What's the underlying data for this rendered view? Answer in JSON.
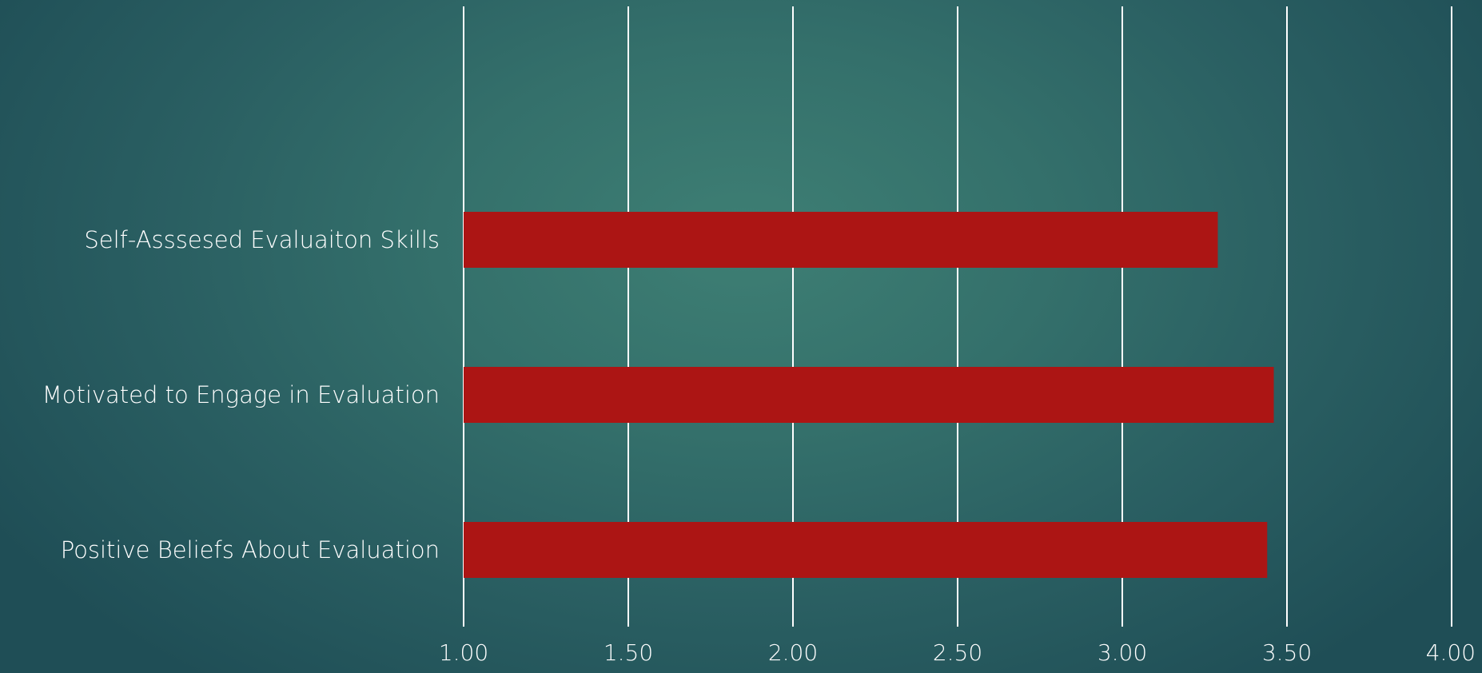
{
  "chart_data": {
    "type": "bar",
    "orientation": "horizontal",
    "categories": [
      "Self-Asssesed Evaluaiton Skills",
      "Motivated to Engage in Evaluation",
      "Positive Beliefs About Evaluation"
    ],
    "values": [
      3.29,
      3.46,
      3.44
    ],
    "xlim": [
      1.0,
      4.0
    ],
    "ticks": [
      "1.00",
      "1.50",
      "2.00",
      "2.50",
      "3.00",
      "3.50",
      "4.00"
    ],
    "grid": true,
    "legend": "none",
    "title": "",
    "xlabel": "",
    "ylabel": "",
    "colors": {
      "bar": "#ac1514",
      "grid": "#ffffff",
      "text": "#ffffff"
    }
  }
}
